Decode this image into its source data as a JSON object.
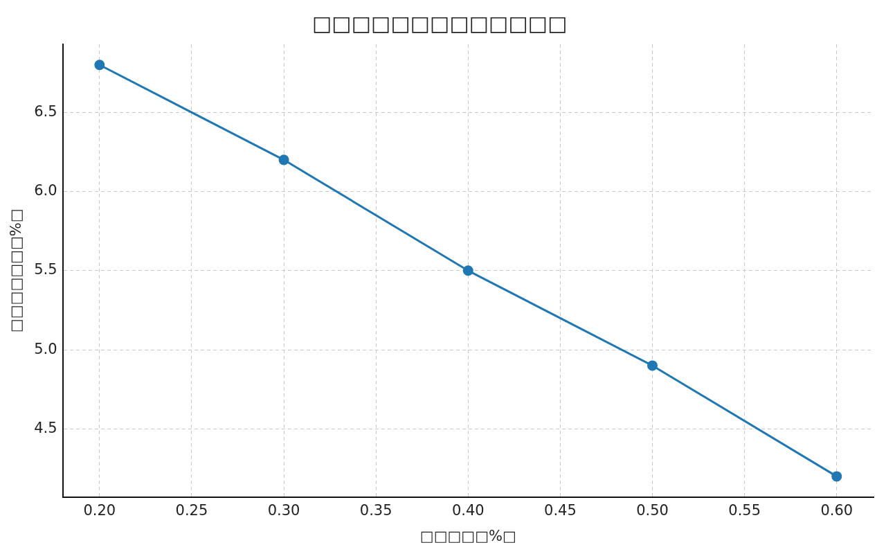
{
  "chart_data": {
    "type": "line",
    "title": "□□□□□□□□□□□□□",
    "xlabel": "□□□□□%□",
    "ylabel": "□□□□□□□%□",
    "x": [
      0.2,
      0.3,
      0.4,
      0.5,
      0.6
    ],
    "series": [
      {
        "color": "#1f77b4",
        "values": [
          6.8,
          6.2,
          5.5,
          4.9,
          4.2
        ]
      }
    ],
    "xlim": [
      0.18,
      0.62
    ],
    "ylim": [
      4.07,
      6.93
    ],
    "xticks": [
      {
        "value": 0.2,
        "label": "0.20"
      },
      {
        "value": 0.25,
        "label": "0.25"
      },
      {
        "value": 0.3,
        "label": "0.30"
      },
      {
        "value": 0.35,
        "label": "0.35"
      },
      {
        "value": 0.4,
        "label": "0.40"
      },
      {
        "value": 0.45,
        "label": "0.45"
      },
      {
        "value": 0.5,
        "label": "0.50"
      },
      {
        "value": 0.55,
        "label": "0.55"
      },
      {
        "value": 0.6,
        "label": "0.60"
      }
    ],
    "yticks": [
      4.5,
      {
        "value": 5,
        "label": "5.0"
      },
      5.5,
      {
        "value": 6,
        "label": "6.0"
      },
      6.5
    ],
    "grid": true,
    "marker": "circle",
    "line_style": "solid",
    "legend": false
  }
}
